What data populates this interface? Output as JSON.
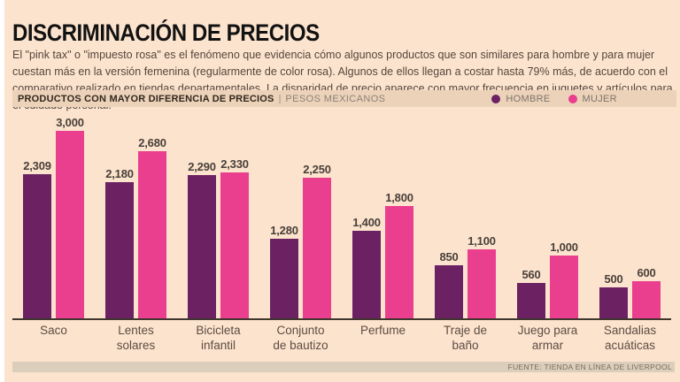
{
  "page": {
    "title": "DISCRIMINACIÓN DE PRECIOS",
    "intro": "El \"pink tax\" o \"impuesto rosa\" es el fenómeno que evidencia cómo algunos productos que son similares para hombre y para mujer cuestan más en la versión femenina (regularmente de color rosa). Algunos de ellos llegan a costar hasta 79% más, de acuerdo con el comparativo realizado en tiendas departamentales. La disparidad de precio aparece con mayor frecuencia en juguetes y artículos para el cuidado personal.",
    "source": "FUENTE: TIENDA EN LÍNEA DE LIVERPOOL"
  },
  "band": {
    "heading": "PRODUCTOS CON MAYOR DIFERENCIA DE PRECIOS",
    "separator": "|",
    "units": "PESOS MEXICANOS",
    "legend": [
      {
        "label": "HOMBRE",
        "color": "#6b2162"
      },
      {
        "label": "MUJER",
        "color": "#ea3e8e"
      }
    ]
  },
  "colors": {
    "background": "#fce3cd",
    "band_background": "#ecd2b9",
    "source_strip_background": "#dbcebb",
    "hombre_bar": "#6b2162",
    "mujer_bar": "#ea3e8e",
    "axis": "#3f372d"
  },
  "chart_data": {
    "type": "bar",
    "title": "PRODUCTOS CON MAYOR DIFERENCIA DE PRECIOS",
    "units": "PESOS MEXICANOS",
    "categories": [
      "Saco",
      "Lentes solares",
      "Bicicleta infantil",
      "Conjunto de bautizo",
      "Perfume",
      "Traje de baño",
      "Juego para armar",
      "Sandalias acuáticas"
    ],
    "tick_labels": [
      "Saco",
      "Lentes\nsolares",
      "Bicicleta\ninfantil",
      "Conjunto\nde bautizo",
      "Perfume",
      "Traje de\nbaño",
      "Juego para\narmar",
      "Sandalias\nacuáticas"
    ],
    "series": [
      {
        "name": "HOMBRE",
        "color": "#6b2162",
        "values": [
          2309,
          2180,
          2290,
          1280,
          1400,
          850,
          560,
          500
        ]
      },
      {
        "name": "MUJER",
        "color": "#ea3e8e",
        "values": [
          3000,
          2680,
          2330,
          2250,
          1800,
          1100,
          1000,
          600
        ]
      }
    ],
    "value_labels": [
      [
        "2,309",
        "2,180",
        "2,290",
        "1,280",
        "1,400",
        "850",
        "560",
        "500"
      ],
      [
        "3,000",
        "2,680",
        "2,330",
        "2,250",
        "1,800",
        "1,100",
        "1,000",
        "600"
      ]
    ],
    "ylim": [
      0,
      3000
    ],
    "grid": false,
    "legend_position": "top",
    "source": "FUENTE: TIENDA EN LÍNEA DE LIVERPOOL"
  }
}
